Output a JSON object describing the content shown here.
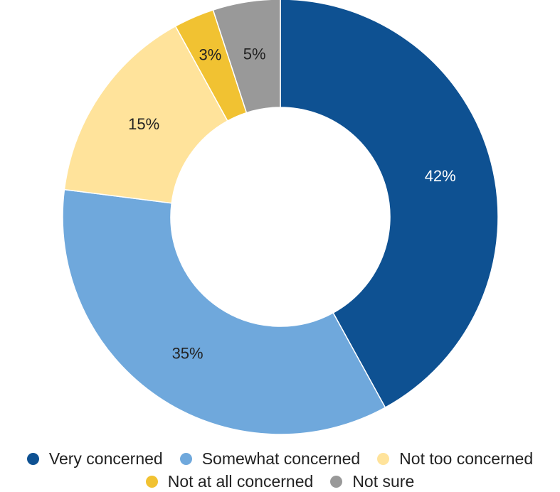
{
  "chart_data": {
    "type": "pie",
    "variant": "donut",
    "categories": [
      "Very concerned",
      "Somewhat concerned",
      "Not too concerned",
      "Not at all concerned",
      "Not sure"
    ],
    "values": [
      42,
      35,
      15,
      3,
      5
    ],
    "data_labels": [
      "42%",
      "35%",
      "15%",
      "3%",
      "5%"
    ],
    "colors": [
      "#0E5192",
      "#6FA8DC",
      "#FFE39B",
      "#F1C232",
      "#999999"
    ],
    "label_colors": [
      "#ffffff",
      "#222222",
      "#222222",
      "#222222",
      "#222222"
    ],
    "start_angle_deg": 0,
    "direction": "clockwise",
    "legend_position": "bottom",
    "legend": {
      "row1": [
        "Very concerned",
        "Somewhat concerned",
        "Not too concerned"
      ],
      "row2": [
        "Not at all concerned",
        "Not sure"
      ]
    }
  }
}
